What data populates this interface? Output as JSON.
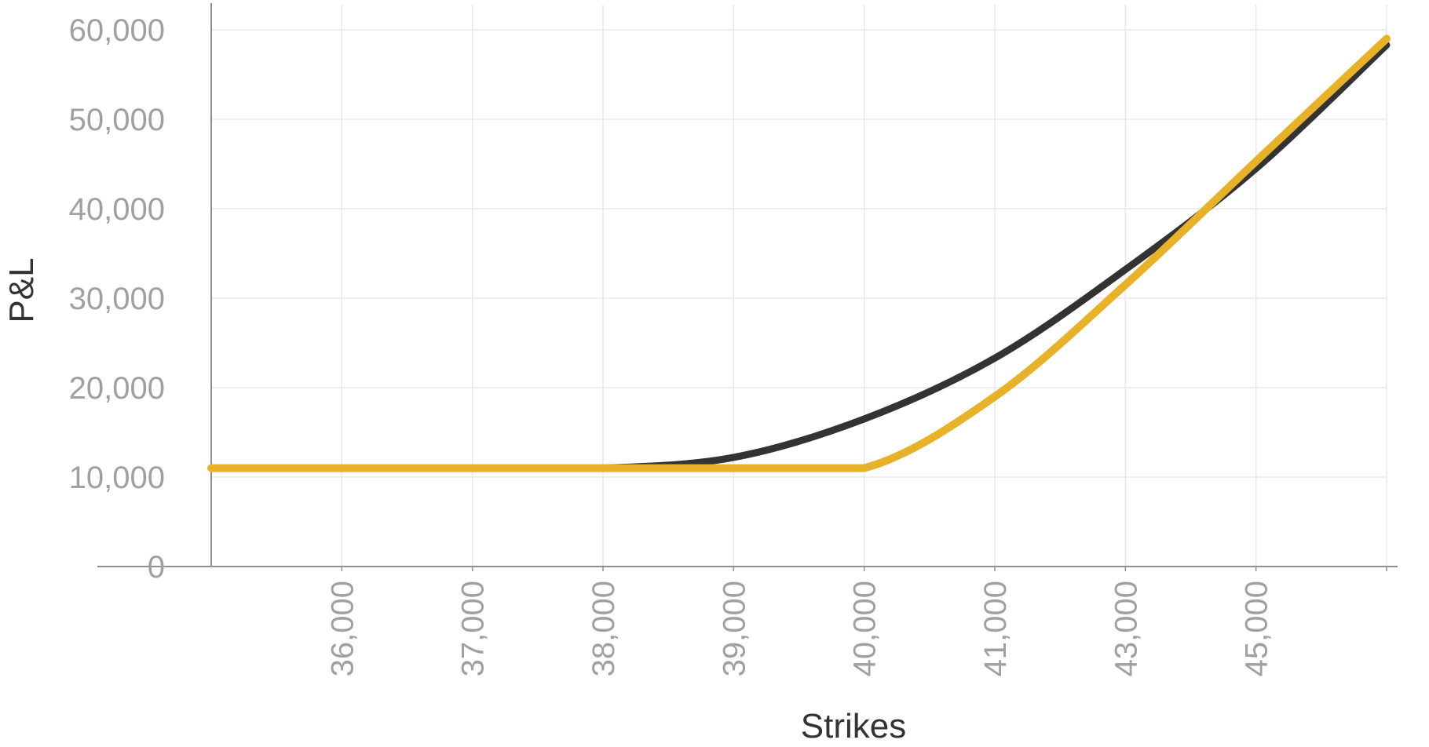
{
  "chart_data": {
    "type": "line",
    "xlabel": "Strikes",
    "ylabel": "P&L",
    "x_tick_labels": [
      "36,000",
      "37,000",
      "38,000",
      "39,000",
      "40,000",
      "41,000",
      "43,000",
      "45,000"
    ],
    "y_ticks": [
      0,
      10000,
      20000,
      30000,
      40000,
      50000,
      60000
    ],
    "y_tick_labels": [
      "0",
      "10,000",
      "20,000",
      "30,000",
      "40,000",
      "50,000",
      "60,000"
    ],
    "ylim": [
      0,
      61000
    ],
    "grid": true,
    "x": [
      "35,000",
      "36,000",
      "37,000",
      "38,000",
      "39,000",
      "40,000",
      "41,000",
      "43,000",
      "45,000",
      "47,000"
    ],
    "series": [
      {
        "color": "#333333",
        "values": [
          11000,
          11000,
          11000,
          11000,
          12200,
          16500,
          23300,
          33200,
          44500,
          58300
        ]
      },
      {
        "color": "#e8b12a",
        "values": [
          11000,
          11000,
          11000,
          11000,
          11000,
          11000,
          19000,
          31500,
          45300,
          59000
        ]
      }
    ],
    "colors": {
      "axis": "#909090",
      "grid": "#e8e8e8",
      "tick_text": "#a0a0a0",
      "title_text": "#333333"
    }
  }
}
